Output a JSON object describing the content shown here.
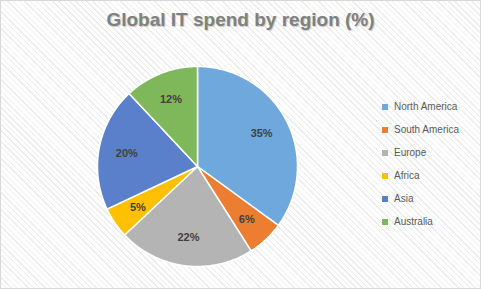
{
  "chart_data": {
    "type": "pie",
    "title": "Global IT spend by region (%)",
    "categories": [
      "North America",
      "South America",
      "Europe",
      "Africa",
      "Asia",
      "Australia"
    ],
    "values": [
      35,
      6,
      22,
      5,
      20,
      12
    ],
    "value_labels": [
      "35%",
      "6%",
      "22%",
      "5%",
      "20%",
      "12%"
    ],
    "colors": [
      "#6fa8dc",
      "#ed7d31",
      "#b4b4b4",
      "#ffc000",
      "#5a80cc",
      "#7fb85a"
    ],
    "data_labels": true,
    "legend": "right"
  }
}
